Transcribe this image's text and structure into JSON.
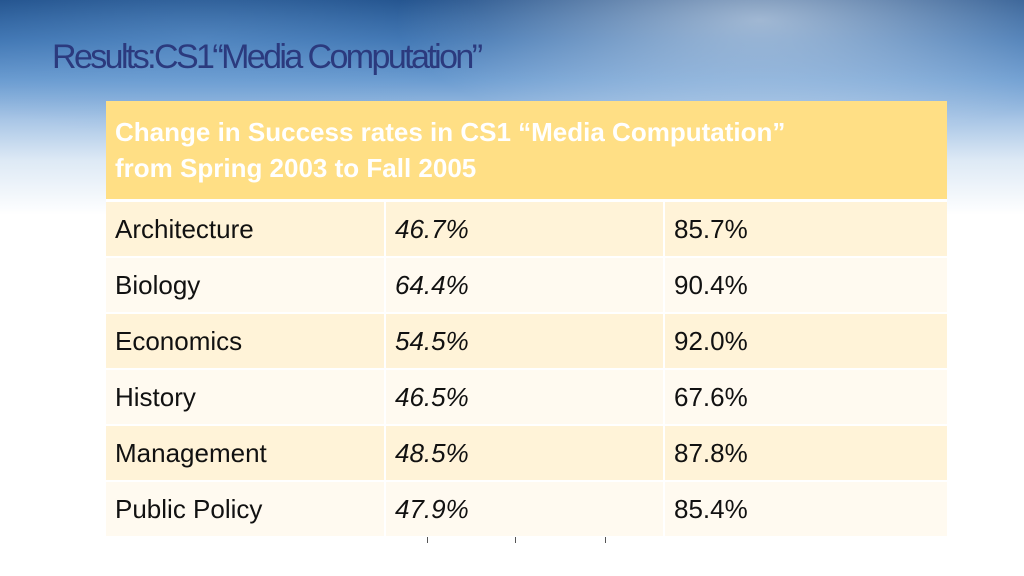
{
  "slide": {
    "title": "Results:CS1“Media Computation”"
  },
  "table": {
    "header": {
      "line1": "Change in Success rates in CS1 “Media Computation”",
      "line2": "from Spring 2003 to Fall 2005"
    },
    "rows": [
      {
        "major": "Architecture",
        "before": "46.7%",
        "after": "85.7%"
      },
      {
        "major": "Biology",
        "before": "64.4%",
        "after": "90.4%"
      },
      {
        "major": "Economics",
        "before": "54.5%",
        "after": "92.0%"
      },
      {
        "major": "History",
        "before": "46.5%",
        "after": "67.6%"
      },
      {
        "major": "Management",
        "before": "48.5%",
        "after": "87.8%"
      },
      {
        "major": "Public Policy",
        "before": "47.9%",
        "after": "85.4%"
      }
    ]
  },
  "colors": {
    "title": "#2b3a7e",
    "header_fill": "#ffdf85",
    "row_odd": "#fff3d8",
    "row_even": "#fffaf0"
  }
}
